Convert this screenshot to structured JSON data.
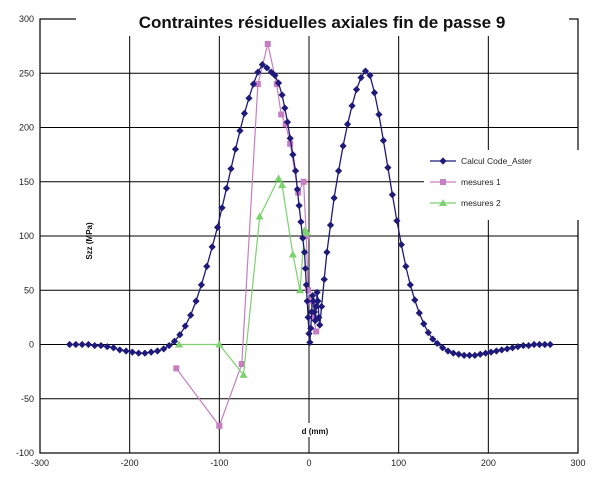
{
  "chart_data": {
    "type": "line",
    "title": "Contraintes résiduelles axiales fin de passe 9",
    "xlabel": "d (mm)",
    "ylabel": "Szz (MPa)",
    "xlim": [
      -300,
      300
    ],
    "ylim": [
      -100,
      300
    ],
    "xticks": [
      -300,
      -200,
      -100,
      0,
      100,
      200,
      300
    ],
    "yticks": [
      -100,
      -50,
      0,
      50,
      100,
      150,
      200,
      250,
      300
    ],
    "grid": true,
    "legend_position": "right",
    "series": [
      {
        "name": "Calcul Code_Aster",
        "color": "#1f1a7a",
        "marker": "diamond",
        "points": [
          [
            -267,
            0
          ],
          [
            -260,
            0
          ],
          [
            -253,
            0
          ],
          [
            -246,
            0
          ],
          [
            -239,
            -1
          ],
          [
            -232,
            -1
          ],
          [
            -225,
            -2
          ],
          [
            -218,
            -3
          ],
          [
            -211,
            -5
          ],
          [
            -204,
            -6
          ],
          [
            -197,
            -7
          ],
          [
            -190,
            -8
          ],
          [
            -183,
            -8
          ],
          [
            -176,
            -7
          ],
          [
            -169,
            -6
          ],
          [
            -162,
            -4
          ],
          [
            -156,
            -1
          ],
          [
            -150,
            3
          ],
          [
            -144,
            9
          ],
          [
            -138,
            17
          ],
          [
            -132,
            27
          ],
          [
            -126,
            40
          ],
          [
            -120,
            55
          ],
          [
            -114,
            72
          ],
          [
            -108,
            90
          ],
          [
            -102,
            108
          ],
          [
            -97,
            126
          ],
          [
            -92,
            144
          ],
          [
            -87,
            162
          ],
          [
            -82,
            180
          ],
          [
            -77,
            197
          ],
          [
            -72,
            213
          ],
          [
            -67,
            227
          ],
          [
            -62,
            240
          ],
          [
            -57,
            251
          ],
          [
            -52,
            258
          ],
          [
            -47,
            255
          ],
          [
            -42,
            251
          ],
          [
            -38,
            248
          ],
          [
            -34,
            241
          ],
          [
            -30,
            230
          ],
          [
            -27,
            218
          ],
          [
            -24,
            205
          ],
          [
            -21,
            190
          ],
          [
            -18,
            175
          ],
          [
            -15,
            160
          ],
          [
            -13,
            143
          ],
          [
            -11,
            128
          ],
          [
            -9,
            113
          ],
          [
            -7,
            98
          ],
          [
            -5,
            85
          ],
          [
            -4,
            70
          ],
          [
            -3,
            55
          ],
          [
            -2,
            40
          ],
          [
            -1,
            25
          ],
          [
            0,
            10
          ],
          [
            1,
            2
          ],
          [
            2,
            15
          ],
          [
            3,
            30
          ],
          [
            4,
            45
          ],
          [
            5,
            40
          ],
          [
            6,
            30
          ],
          [
            7,
            22
          ],
          [
            8,
            35
          ],
          [
            9,
            48
          ],
          [
            10,
            40
          ],
          [
            11,
            25
          ],
          [
            12,
            18
          ],
          [
            14,
            35
          ],
          [
            17,
            60
          ],
          [
            20,
            85
          ],
          [
            24,
            110
          ],
          [
            28,
            135
          ],
          [
            33,
            160
          ],
          [
            38,
            183
          ],
          [
            43,
            203
          ],
          [
            48,
            220
          ],
          [
            53,
            235
          ],
          [
            58,
            246
          ],
          [
            63,
            252
          ],
          [
            68,
            248
          ],
          [
            73,
            232
          ],
          [
            78,
            212
          ],
          [
            83,
            188
          ],
          [
            88,
            163
          ],
          [
            93,
            138
          ],
          [
            98,
            114
          ],
          [
            103,
            92
          ],
          [
            108,
            72
          ],
          [
            113,
            55
          ],
          [
            118,
            41
          ],
          [
            123,
            29
          ],
          [
            128,
            19
          ],
          [
            133,
            11
          ],
          [
            138,
            5
          ],
          [
            143,
            1
          ],
          [
            149,
            -3
          ],
          [
            155,
            -6
          ],
          [
            161,
            -8
          ],
          [
            167,
            -9
          ],
          [
            173,
            -10
          ],
          [
            179,
            -10
          ],
          [
            185,
            -10
          ],
          [
            191,
            -9
          ],
          [
            197,
            -8
          ],
          [
            203,
            -7
          ],
          [
            209,
            -6
          ],
          [
            215,
            -5
          ],
          [
            221,
            -4
          ],
          [
            227,
            -3
          ],
          [
            233,
            -2
          ],
          [
            239,
            -1
          ],
          [
            245,
            -1
          ],
          [
            251,
            0
          ],
          [
            257,
            0
          ],
          [
            263,
            0
          ],
          [
            269,
            0
          ]
        ]
      },
      {
        "name": "mesures 1",
        "color": "#c77dc1",
        "marker": "square",
        "points": [
          [
            -148,
            -22
          ],
          [
            -100,
            -75
          ],
          [
            -75,
            -18
          ],
          [
            -57,
            240
          ],
          [
            -46,
            277
          ],
          [
            -36,
            240
          ],
          [
            -31,
            212
          ],
          [
            -26,
            203
          ],
          [
            -21,
            185
          ],
          [
            -12,
            140
          ],
          [
            -6,
            150
          ],
          [
            -3,
            100
          ],
          [
            -1,
            50
          ],
          [
            2,
            40
          ],
          [
            5,
            25
          ],
          [
            8,
            12
          ]
        ]
      },
      {
        "name": "mesures 2",
        "color": "#7bd26e",
        "marker": "triangle",
        "points": [
          [
            -145,
            0
          ],
          [
            -100,
            0
          ],
          [
            -73,
            -28
          ],
          [
            -55,
            118
          ],
          [
            -34,
            153
          ],
          [
            -30,
            147
          ],
          [
            -18,
            83
          ],
          [
            -10,
            50
          ],
          [
            -5,
            105
          ],
          [
            -2,
            103
          ]
        ]
      }
    ]
  }
}
